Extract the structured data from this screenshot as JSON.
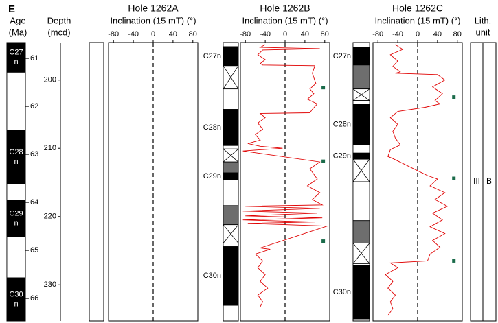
{
  "panel_label": "E",
  "age_column": {
    "title": [
      "Age",
      "(Ma)"
    ],
    "lim": [
      60.67,
      66.47
    ],
    "ticks": [
      61,
      62,
      63,
      64,
      65,
      66
    ],
    "intervals": [
      {
        "top": 60.67,
        "bottom": 61.29,
        "style": "black",
        "label": [
          "C27",
          "n"
        ]
      },
      {
        "top": 61.29,
        "bottom": 62.5,
        "style": "white"
      },
      {
        "top": 62.5,
        "bottom": 63.61,
        "style": "black",
        "label": [
          "C28",
          "n"
        ]
      },
      {
        "top": 63.61,
        "bottom": 63.96,
        "style": "white"
      },
      {
        "top": 63.96,
        "bottom": 64.71,
        "style": "black",
        "label": [
          "C29",
          "n"
        ]
      },
      {
        "top": 64.71,
        "bottom": 65.57,
        "style": "white"
      },
      {
        "top": 65.57,
        "bottom": 66.47,
        "style": "black",
        "label": [
          "C30",
          "n"
        ]
      }
    ]
  },
  "depth_axis": {
    "title": [
      "Depth",
      "(mcd)"
    ],
    "lim": [
      194.5,
      235.3
    ],
    "ticks": [
      200,
      210,
      220,
      230
    ]
  },
  "chart_data": [
    {
      "type": "line",
      "title": "Hole 1262A",
      "xlabel": "Inclination (15 mT) (°)",
      "xlim": [
        -90,
        90
      ],
      "xticks": [
        -80,
        -40,
        0,
        40,
        80
      ],
      "vline": 0,
      "ylim": [
        194.5,
        235.3
      ],
      "series": [],
      "polarity": []
    },
    {
      "type": "line",
      "title": "Hole 1262B",
      "xlabel": "Inclination (15 mT) (°)",
      "xlim": [
        -90,
        90
      ],
      "xticks": [
        -80,
        -40,
        0,
        40,
        80
      ],
      "vline": 0,
      "ylim": [
        194.5,
        235.3
      ],
      "series": [
        {
          "color": "#e00000",
          "values": [
            -40,
            -50,
            70,
            -45,
            -55,
            -40,
            -50,
            -45,
            60,
            55,
            62,
            50,
            58,
            45,
            65,
            55,
            50,
            -50,
            -40,
            -55,
            -45,
            -60,
            -50,
            -75,
            -50,
            -5,
            -85,
            70,
            50,
            65,
            45,
            70,
            55,
            75,
            -80,
            70,
            -85,
            65,
            -80,
            75,
            -85,
            60,
            -75,
            85,
            -50,
            -30,
            -60,
            -45,
            -55,
            -40,
            -50,
            -35,
            -55,
            -45,
            -50
          ],
          "depth": [
            194.8,
            195.2,
            195.4,
            195.6,
            196.3,
            197.0,
            197.6,
            197.8,
            197.9,
            199.0,
            200.5,
            201.3,
            202.0,
            202.8,
            203.5,
            204.3,
            204.8,
            204.9,
            205.5,
            206.3,
            207.2,
            208.0,
            208.8,
            209.3,
            209.7,
            210.0,
            210.4,
            212.0,
            213.0,
            214.5,
            215.5,
            216.5,
            217.5,
            218.3,
            218.5,
            218.8,
            219.2,
            219.5,
            219.9,
            220.2,
            220.5,
            220.8,
            221.0,
            221.4,
            224.6,
            224.8,
            225.5,
            226.5,
            227.5,
            228.5,
            229.5,
            230.5,
            231.5,
            232.5,
            233.2
          ]
        }
      ],
      "markers": {
        "color": "#1a6b4a",
        "values": [
          77,
          77,
          77
        ],
        "depth": [
          201.1,
          211.9,
          223.6
        ]
      },
      "polarity": [
        {
          "top": 194.5,
          "bottom": 195.1,
          "style": "white"
        },
        {
          "top": 195.1,
          "bottom": 197.9,
          "style": "black",
          "label": [
            "C27n"
          ]
        },
        {
          "top": 197.9,
          "bottom": 201.3,
          "style": "cross"
        },
        {
          "top": 201.3,
          "bottom": 204.3,
          "style": "white"
        },
        {
          "top": 204.3,
          "bottom": 209.6,
          "style": "black",
          "label": [
            "C28n"
          ]
        },
        {
          "top": 209.6,
          "bottom": 210.1,
          "style": "white"
        },
        {
          "top": 210.1,
          "bottom": 212.0,
          "style": "cross"
        },
        {
          "top": 212.0,
          "bottom": 213.6,
          "style": "gray"
        },
        {
          "top": 213.6,
          "bottom": 214.6,
          "style": "black",
          "label": [
            "C29n"
          ]
        },
        {
          "top": 214.6,
          "bottom": 218.4,
          "style": "white"
        },
        {
          "top": 218.4,
          "bottom": 221.2,
          "style": "gray"
        },
        {
          "top": 221.2,
          "bottom": 223.9,
          "style": "cross"
        },
        {
          "top": 223.9,
          "bottom": 224.4,
          "style": "white"
        },
        {
          "top": 224.4,
          "bottom": 233.0,
          "style": "black",
          "label": [
            "C30n"
          ]
        }
      ]
    },
    {
      "type": "line",
      "title": "Hole 1262C",
      "xlabel": "Inclination (15 mT) (°)",
      "xlim": [
        -90,
        90
      ],
      "xticks": [
        -80,
        -40,
        0,
        40,
        80
      ],
      "vline": 0,
      "ylim": [
        194.5,
        235.3
      ],
      "series": [
        {
          "color": "#e00000",
          "values": [
            -45,
            -30,
            -55,
            -40,
            -50,
            -35,
            -45,
            40,
            55,
            30,
            50,
            35,
            45,
            15,
            -40,
            -55,
            -40,
            -50,
            -45,
            -35,
            -55,
            -60,
            -50,
            20,
            40,
            25,
            55,
            35,
            60,
            30,
            50,
            25,
            55,
            30,
            45,
            25,
            20,
            -55,
            -40,
            -65,
            -50,
            -60,
            -45,
            -55,
            -50,
            -60
          ],
          "depth": [
            194.8,
            195.5,
            196.3,
            197.2,
            198.0,
            198.8,
            199.0,
            199.2,
            200.0,
            201.0,
            202.0,
            203.0,
            203.5,
            204.0,
            204.6,
            205.5,
            206.5,
            207.5,
            208.5,
            209.5,
            210.2,
            211.2,
            211.5,
            214.0,
            214.5,
            215.5,
            216.5,
            217.5,
            218.5,
            219.5,
            220.5,
            221.5,
            222.5,
            223.5,
            224.5,
            225.5,
            226.5,
            226.8,
            227.5,
            228.5,
            229.5,
            230.5,
            231.5,
            232.5,
            233.5,
            234.5
          ]
        }
      ],
      "markers": {
        "color": "#1a6b4a",
        "values": [
          73,
          73,
          73
        ],
        "depth": [
          202.5,
          214.4,
          226.5
        ]
      },
      "polarity": [
        {
          "top": 194.5,
          "bottom": 195.2,
          "style": "white"
        },
        {
          "top": 195.2,
          "bottom": 197.8,
          "style": "black",
          "label": [
            "C27n"
          ]
        },
        {
          "top": 197.8,
          "bottom": 201.3,
          "style": "gray"
        },
        {
          "top": 201.3,
          "bottom": 203.0,
          "style": "cross"
        },
        {
          "top": 203.0,
          "bottom": 203.5,
          "style": "white"
        },
        {
          "top": 203.5,
          "bottom": 209.5,
          "style": "black",
          "label": [
            "C28n"
          ]
        },
        {
          "top": 209.5,
          "bottom": 210.7,
          "style": "white"
        },
        {
          "top": 210.7,
          "bottom": 211.6,
          "style": "black",
          "label": [
            "C29n"
          ]
        },
        {
          "top": 211.6,
          "bottom": 214.9,
          "style": "cross"
        },
        {
          "top": 214.9,
          "bottom": 220.6,
          "style": "white"
        },
        {
          "top": 220.6,
          "bottom": 223.9,
          "style": "gray"
        },
        {
          "top": 223.9,
          "bottom": 226.9,
          "style": "cross"
        },
        {
          "top": 226.9,
          "bottom": 227.2,
          "style": "white"
        },
        {
          "top": 227.2,
          "bottom": 235.0,
          "style": "black",
          "label": [
            "C30n"
          ]
        }
      ]
    }
  ],
  "lith_unit": {
    "title": [
      "Lith.",
      "unit"
    ],
    "unit": "III",
    "subunit": "B"
  }
}
